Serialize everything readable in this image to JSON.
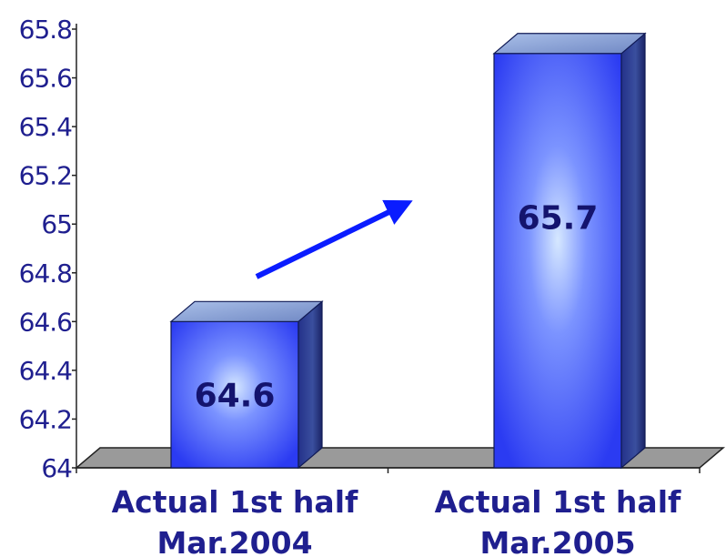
{
  "chart_data": {
    "type": "bar",
    "categories": [
      [
        "Actual 1st half",
        "Mar.2004"
      ],
      [
        "Actual 1st half",
        "Mar.2005"
      ]
    ],
    "values": [
      64.6,
      65.7
    ],
    "data_labels": [
      "64.6",
      "65.7"
    ],
    "ylim": [
      64,
      65.8
    ],
    "y_ticks": [
      "64",
      "64.2",
      "64.4",
      "64.6",
      "64.8",
      "65",
      "65.2",
      "65.4",
      "65.6",
      "65.8"
    ],
    "title": "",
    "xlabel": "",
    "ylabel": "",
    "grid": false,
    "legend": "none",
    "style": "3d-bar",
    "annotation": "upward arrow between bars",
    "colors": {
      "bar_front": "#3a48ff",
      "bar_highlight": "#cfe3ff",
      "bar_side": "#1d2a78",
      "bar_top": "#8fa6d6",
      "arrow": "#0a1cff",
      "text": "#1f1f8f",
      "data_label": "#14146e",
      "floor": "#9a9a9a"
    }
  }
}
